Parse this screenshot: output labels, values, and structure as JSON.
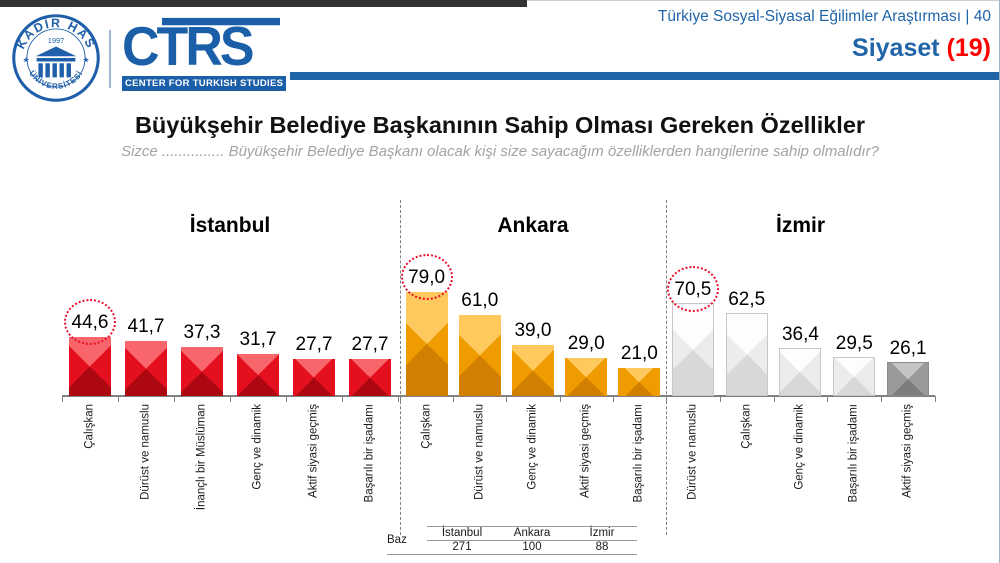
{
  "header": {
    "seal": {
      "top_text": "KADİR HAS",
      "bottom_text": "ÜNİVERSİTESİ",
      "year": "1997"
    },
    "ctrs": {
      "acronym": "CTRS",
      "subtitle": "CENTER FOR TURKISH STUDIES"
    },
    "report_title": "Türkiye Sosyal-Siyasal Eğilimler Araştırması | 40",
    "section": "Siyaset",
    "section_number": "(19)"
  },
  "title": "Büyükşehir Belediye Başkanının Sahip Olması Gereken Özellikler",
  "subtitle": "Sizce ............... Büyükşehir Belediye Başkanı olacak kişi size sayacağım özelliklerden hangilerine sahip olmalıdır?",
  "chart_data": {
    "type": "bar",
    "unit": "percent",
    "ylim": [
      0,
      100
    ],
    "legend": "none",
    "groups": [
      {
        "name": "İstanbul",
        "color": "red",
        "bars": [
          {
            "category": "Çalışkan",
            "value": 44.6,
            "display": "44,6",
            "circled": true
          },
          {
            "category": "Dürüst ve namuslu",
            "value": 41.7,
            "display": "41,7",
            "circled": false
          },
          {
            "category": "İnançlı bir Müslüman",
            "value": 37.3,
            "display": "37,3",
            "circled": false
          },
          {
            "category": "Genç ve dinamik",
            "value": 31.7,
            "display": "31,7",
            "circled": false
          },
          {
            "category": "Aktif siyasi geçmiş",
            "value": 27.7,
            "display": "27,7",
            "circled": false
          },
          {
            "category": "Başarılı bir işadamı",
            "value": 27.7,
            "display": "27,7",
            "circled": false
          }
        ]
      },
      {
        "name": "Ankara",
        "color": "orange",
        "bars": [
          {
            "category": "Çalışkan",
            "value": 79.0,
            "display": "79,0",
            "circled": true
          },
          {
            "category": "Dürüst ve namuslu",
            "value": 61.0,
            "display": "61,0",
            "circled": false
          },
          {
            "category": "Genç ve dinamik",
            "value": 39.0,
            "display": "39,0",
            "circled": false
          },
          {
            "category": "Aktif siyasi geçmiş",
            "value": 29.0,
            "display": "29,0",
            "circled": false
          },
          {
            "category": "Başarılı bir işadamı",
            "value": 21.0,
            "display": "21,0",
            "circled": false
          }
        ]
      },
      {
        "name": "İzmir",
        "color": "white",
        "bars": [
          {
            "category": "Dürüst ve namuslu",
            "value": 70.5,
            "display": "70,5",
            "circled": true
          },
          {
            "category": "Çalışkan",
            "value": 62.5,
            "display": "62,5",
            "circled": false
          },
          {
            "category": "Genç ve dinamik",
            "value": 36.4,
            "display": "36,4",
            "circled": false
          },
          {
            "category": "Başarılı bir işadamı",
            "value": 29.5,
            "display": "29,5",
            "circled": false
          },
          {
            "category": "Aktif siyasi geçmiş",
            "value": 26.1,
            "display": "26,1",
            "circled": false,
            "color": "dark"
          }
        ]
      }
    ]
  },
  "base_table": {
    "label": "Baz",
    "columns": [
      {
        "name": "İstanbul",
        "value": "271"
      },
      {
        "name": "Ankara",
        "value": "100"
      },
      {
        "name": "İzmir",
        "value": "88"
      }
    ]
  },
  "colors": {
    "brand_blue": "#2065A8",
    "logo_blue": "#1B5FA8",
    "accent_red": "#FF0000",
    "bar_red": "#E8112D",
    "bar_orange": "#F6A21B",
    "bar_white": "#F2F2F2",
    "bar_dark": "#9A9A9A",
    "highlight_circle": "#E8112D",
    "axis_gray": "#7F7F7F"
  }
}
